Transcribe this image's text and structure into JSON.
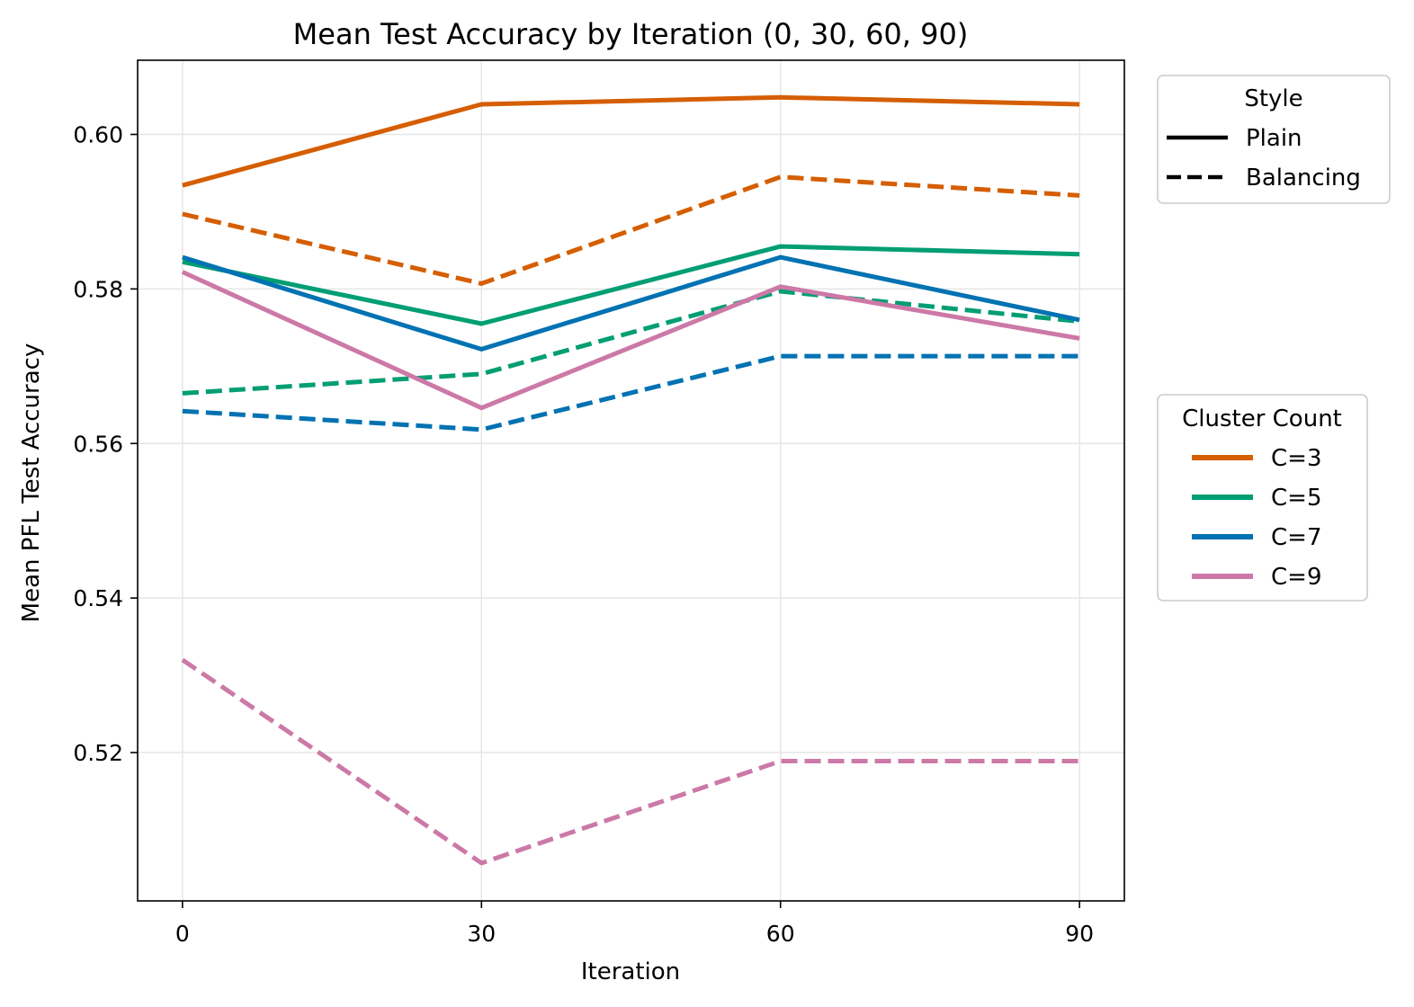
{
  "chart_data": {
    "type": "line",
    "title": "Mean Test Accuracy by Iteration (0, 30, 60, 90)",
    "xlabel": "Iteration",
    "ylabel": "Mean PFL Test Accuracy",
    "x": [
      0,
      30,
      60,
      90
    ],
    "x_ticks": [
      "0",
      "30",
      "60",
      "90"
    ],
    "xlim": [
      -4.5,
      94.5
    ],
    "ylim": [
      0.5008,
      0.6096
    ],
    "y_ticks": [
      "0.52",
      "0.54",
      "0.56",
      "0.58",
      "0.60"
    ],
    "y_tick_values": [
      0.52,
      0.54,
      0.56,
      0.58,
      0.6
    ],
    "grid": true,
    "legend_style": {
      "title": "Style",
      "placement": "outside-top-right",
      "entries": [
        {
          "label": "Plain",
          "dash": "solid"
        },
        {
          "label": "Balancing",
          "dash": "dashed"
        }
      ]
    },
    "legend_cluster": {
      "title": "Cluster Count",
      "placement": "outside-right",
      "entries": [
        {
          "label": "C=3",
          "color": "#d55e00"
        },
        {
          "label": "C=5",
          "color": "#009e73"
        },
        {
          "label": "C=7",
          "color": "#0072b2"
        },
        {
          "label": "C=9",
          "color": "#cc79a7"
        }
      ]
    },
    "series": [
      {
        "cluster": "C=3",
        "style": "Plain",
        "color": "#d55e00",
        "dash": "solid",
        "values": [
          0.5934,
          0.6039,
          0.6048,
          0.6039
        ]
      },
      {
        "cluster": "C=3",
        "style": "Balancing",
        "color": "#d55e00",
        "dash": "dashed",
        "values": [
          0.5897,
          0.5807,
          0.5945,
          0.5921
        ]
      },
      {
        "cluster": "C=5",
        "style": "Plain",
        "color": "#009e73",
        "dash": "solid",
        "values": [
          0.5835,
          0.5755,
          0.5855,
          0.5845
        ]
      },
      {
        "cluster": "C=5",
        "style": "Balancing",
        "color": "#009e73",
        "dash": "dashed",
        "values": [
          0.5665,
          0.569,
          0.5797,
          0.5758
        ]
      },
      {
        "cluster": "C=7",
        "style": "Plain",
        "color": "#0072b2",
        "dash": "solid",
        "values": [
          0.5841,
          0.5722,
          0.5841,
          0.576
        ]
      },
      {
        "cluster": "C=7",
        "style": "Balancing",
        "color": "#0072b2",
        "dash": "dashed",
        "values": [
          0.5642,
          0.5618,
          0.5713,
          0.5713
        ]
      },
      {
        "cluster": "C=9",
        "style": "Plain",
        "color": "#cc79a7",
        "dash": "solid",
        "values": [
          0.5822,
          0.5646,
          0.5803,
          0.5736
        ]
      },
      {
        "cluster": "C=9",
        "style": "Balancing",
        "color": "#cc79a7",
        "dash": "dashed",
        "values": [
          0.532,
          0.5057,
          0.5189,
          0.5189
        ]
      }
    ]
  }
}
